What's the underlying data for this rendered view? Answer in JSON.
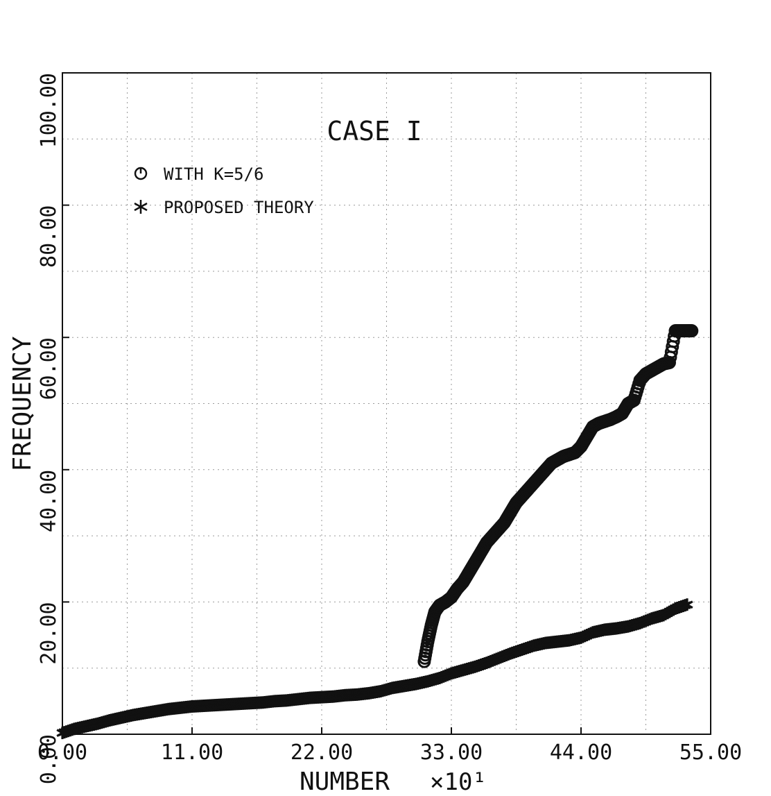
{
  "chart_data": {
    "type": "scatter",
    "title": "CASE I",
    "xlabel": "NUMBER",
    "x_multiplier": "×10¹",
    "ylabel": "FREQUENCY",
    "xlim": [
      0,
      55
    ],
    "ylim": [
      0,
      100
    ],
    "x_ticks": [
      0,
      11,
      22,
      33,
      44,
      55
    ],
    "x_tick_labels": [
      "0.00",
      "11.00",
      "22.00",
      "33.00",
      "44.00",
      "55.00"
    ],
    "y_ticks": [
      0,
      20,
      40,
      60,
      80,
      100
    ],
    "y_tick_labels": [
      "0.00",
      "20.00",
      "40.00",
      "60.00",
      "80.00",
      "100.00"
    ],
    "grid": true,
    "legend_position": "top-left",
    "series": [
      {
        "name": "WITH K=5/6",
        "marker": "circle",
        "color": "#111111",
        "x": [
          30.7,
          31.0,
          31.3,
          31.6,
          32.0,
          32.5,
          33.0,
          33.5,
          34.0,
          34.5,
          35.0,
          35.5,
          36.0,
          36.5,
          37.0,
          37.5,
          38.0,
          38.5,
          39.0,
          39.5,
          40.0,
          40.5,
          41.0,
          41.5,
          42.0,
          42.5,
          43.0,
          43.5,
          44.0,
          44.5,
          45.0,
          45.5,
          46.0,
          46.5,
          47.0,
          47.5,
          48.0,
          48.5,
          49.0,
          49.5,
          50.0,
          50.5,
          51.0,
          51.5,
          52.0,
          52.5,
          53.0,
          53.4
        ],
        "y": [
          11.0,
          14.0,
          16.5,
          18.5,
          19.5,
          20.0,
          20.7,
          22.0,
          23.0,
          24.5,
          26.0,
          27.5,
          29.0,
          30.0,
          31.0,
          32.0,
          33.5,
          35.0,
          36.0,
          37.0,
          38.0,
          39.0,
          40.0,
          41.0,
          41.5,
          42.0,
          42.3,
          42.6,
          43.5,
          45.0,
          46.5,
          47.0,
          47.3,
          47.6,
          48.0,
          48.5,
          50.0,
          50.5,
          53.5,
          54.5,
          55.0,
          55.5,
          56.0,
          56.2,
          61.0,
          61.0,
          61.0,
          61.0
        ]
      },
      {
        "name": "PROPOSED THEORY",
        "marker": "asterisk",
        "color": "#111111",
        "x": [
          0,
          1,
          2,
          3,
          4,
          5,
          6,
          7,
          8,
          9,
          10,
          11,
          12,
          13,
          14,
          15,
          16,
          17,
          18,
          19,
          20,
          21,
          22,
          23,
          24,
          25,
          26,
          27,
          28,
          29,
          30,
          31,
          32,
          33,
          34,
          35,
          36,
          37,
          38,
          39,
          40,
          41,
          42,
          43,
          44,
          45,
          46,
          47,
          48,
          49,
          50,
          51,
          52,
          53
        ],
        "y": [
          0.2,
          0.8,
          1.2,
          1.6,
          2.1,
          2.5,
          2.9,
          3.2,
          3.5,
          3.8,
          4.0,
          4.2,
          4.3,
          4.4,
          4.5,
          4.6,
          4.7,
          4.8,
          5.0,
          5.1,
          5.3,
          5.5,
          5.6,
          5.7,
          5.9,
          6.0,
          6.2,
          6.5,
          7.0,
          7.3,
          7.6,
          8.0,
          8.5,
          9.2,
          9.7,
          10.2,
          10.8,
          11.5,
          12.2,
          12.8,
          13.4,
          13.8,
          14.0,
          14.2,
          14.6,
          15.4,
          15.8,
          16.0,
          16.3,
          16.8,
          17.5,
          18.0,
          19.0,
          19.6
        ]
      }
    ]
  }
}
